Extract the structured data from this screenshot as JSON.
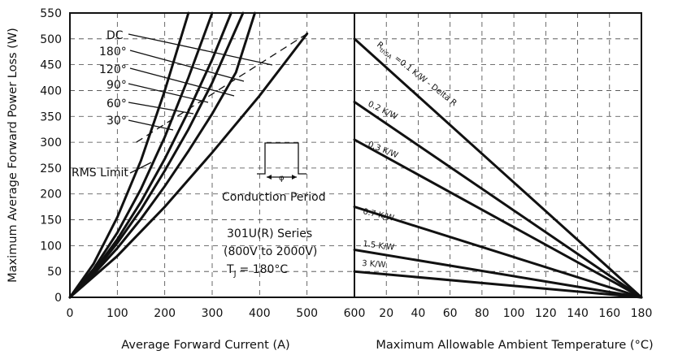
{
  "chart_data": [
    {
      "type": "line",
      "title": "",
      "xlabel": "Average Forward Current (A)",
      "ylabel": "Maximum Average Forward Power Loss (W)",
      "xlim": [
        0,
        600
      ],
      "ylim": [
        0,
        550
      ],
      "x_ticks": [
        0,
        100,
        200,
        300,
        400,
        500
      ],
      "y_ticks": [
        0,
        50,
        100,
        150,
        200,
        250,
        300,
        350,
        400,
        450,
        500,
        550
      ],
      "grid": true,
      "series": [
        {
          "name": "30°",
          "x": [
            0,
            50,
            100,
            150,
            200,
            250
          ],
          "y": [
            0,
            65,
            155,
            265,
            400,
            550
          ]
        },
        {
          "name": "60°",
          "x": [
            0,
            50,
            100,
            150,
            200,
            250,
            300
          ],
          "y": [
            0,
            55,
            125,
            210,
            310,
            425,
            550
          ]
        },
        {
          "name": "90°",
          "x": [
            0,
            50,
            100,
            150,
            200,
            250,
            300,
            340
          ],
          "y": [
            0,
            50,
            112,
            185,
            268,
            360,
            460,
            550
          ]
        },
        {
          "name": "120°",
          "x": [
            0,
            50,
            100,
            150,
            200,
            250,
            300,
            365
          ],
          "y": [
            0,
            48,
            105,
            170,
            245,
            325,
            415,
            550
          ]
        },
        {
          "name": "180°",
          "x": [
            0,
            50,
            100,
            150,
            200,
            250,
            300,
            350,
            390
          ],
          "y": [
            0,
            45,
            95,
            152,
            215,
            283,
            355,
            435,
            550
          ]
        },
        {
          "name": "DC",
          "x": [
            0,
            100,
            200,
            300,
            400,
            500
          ],
          "y": [
            0,
            80,
            175,
            280,
            390,
            510
          ]
        }
      ],
      "rms_limit": {
        "x": [
          140,
          500
        ],
        "y": [
          300,
          510
        ]
      },
      "annotations": {
        "rms_label": "RMS Limit",
        "conduction_period": "Conduction Period",
        "phi": "φ",
        "series_name": "301U(R) Series",
        "voltage_range": "(800V to 2000V)",
        "tj_label": "T",
        "tj_subscript": "J",
        "tj_value": "= 180°C"
      }
    },
    {
      "type": "line",
      "title": "",
      "xlabel": "Maximum Allowable Ambient Temperature (°C)",
      "ylabel": "",
      "xlim": [
        0,
        180
      ],
      "ylim": [
        0,
        550
      ],
      "x_ticks": [
        20,
        40,
        60,
        80,
        100,
        120,
        140,
        160,
        180
      ],
      "grid": true,
      "series": [
        {
          "name": "=0.1 K/W - Delta R",
          "x": [
            0,
            180
          ],
          "y": [
            500,
            0
          ]
        },
        {
          "name": "0.2 K/W",
          "x": [
            0,
            180
          ],
          "y": [
            378,
            0
          ]
        },
        {
          "name": "0.3 K/W",
          "x": [
            0,
            180
          ],
          "y": [
            305,
            0
          ]
        },
        {
          "name": "0.7 K/W",
          "x": [
            0,
            180
          ],
          "y": [
            175,
            0
          ]
        },
        {
          "name": "1.5 K/W",
          "x": [
            0,
            180
          ],
          "y": [
            92,
            0
          ]
        },
        {
          "name": "3 K/W",
          "x": [
            0,
            180
          ],
          "y": [
            50,
            0
          ]
        }
      ],
      "rthsa_label": "R",
      "rthsa_sub": "thSA",
      "shared_tick_label": "600"
    }
  ]
}
